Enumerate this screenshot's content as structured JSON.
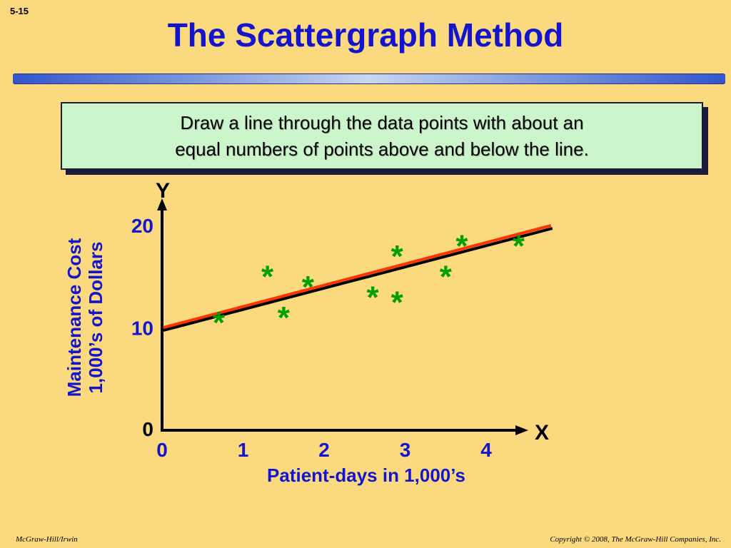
{
  "slide_number": "5-15",
  "title": "The Scattergraph Method",
  "callout": {
    "line1": "Draw a line through the data points with about an",
    "line2": "equal numbers of points above and below the line."
  },
  "footer": {
    "left": "McGraw-Hill/Irwin",
    "right": "Copyright © 2008, The McGraw-Hill Companies, Inc."
  },
  "colors": {
    "background": "#FAD97F",
    "title": "#1414CC",
    "axis_label": "#1414CC",
    "point": "#00A000",
    "fit_line": "#FF3300",
    "callout_fill": "#CCF5CC"
  },
  "chart_data": {
    "type": "scatter",
    "marker": "*",
    "x_axis_letter": "X",
    "y_axis_letter": "Y",
    "xlabel": "Patient-days in 1,000’s",
    "ylabel_lines": [
      "Maintenance Cost",
      "1,000’s of Dollars"
    ],
    "x_ticks": [
      "0",
      "1",
      "2",
      "3",
      "4"
    ],
    "x_tick_values": [
      0,
      1,
      2,
      3,
      4
    ],
    "y_ticks": [
      "0",
      "10",
      "20"
    ],
    "y_tick_values": [
      0,
      10,
      20
    ],
    "xlim": [
      0,
      4.5
    ],
    "ylim": [
      0,
      20
    ],
    "points": [
      {
        "x": 0.7,
        "y": 11
      },
      {
        "x": 1.3,
        "y": 15.5
      },
      {
        "x": 1.5,
        "y": 11.5
      },
      {
        "x": 1.8,
        "y": 14.5
      },
      {
        "x": 2.6,
        "y": 13.5
      },
      {
        "x": 2.9,
        "y": 17.5
      },
      {
        "x": 2.9,
        "y": 13
      },
      {
        "x": 3.5,
        "y": 15.5
      },
      {
        "x": 3.7,
        "y": 18.5
      },
      {
        "x": 4.4,
        "y": 18.5
      }
    ],
    "fit_line": {
      "x1": 0,
      "y1": 10,
      "x2": 4.8,
      "y2": 20
    },
    "grid": false
  }
}
